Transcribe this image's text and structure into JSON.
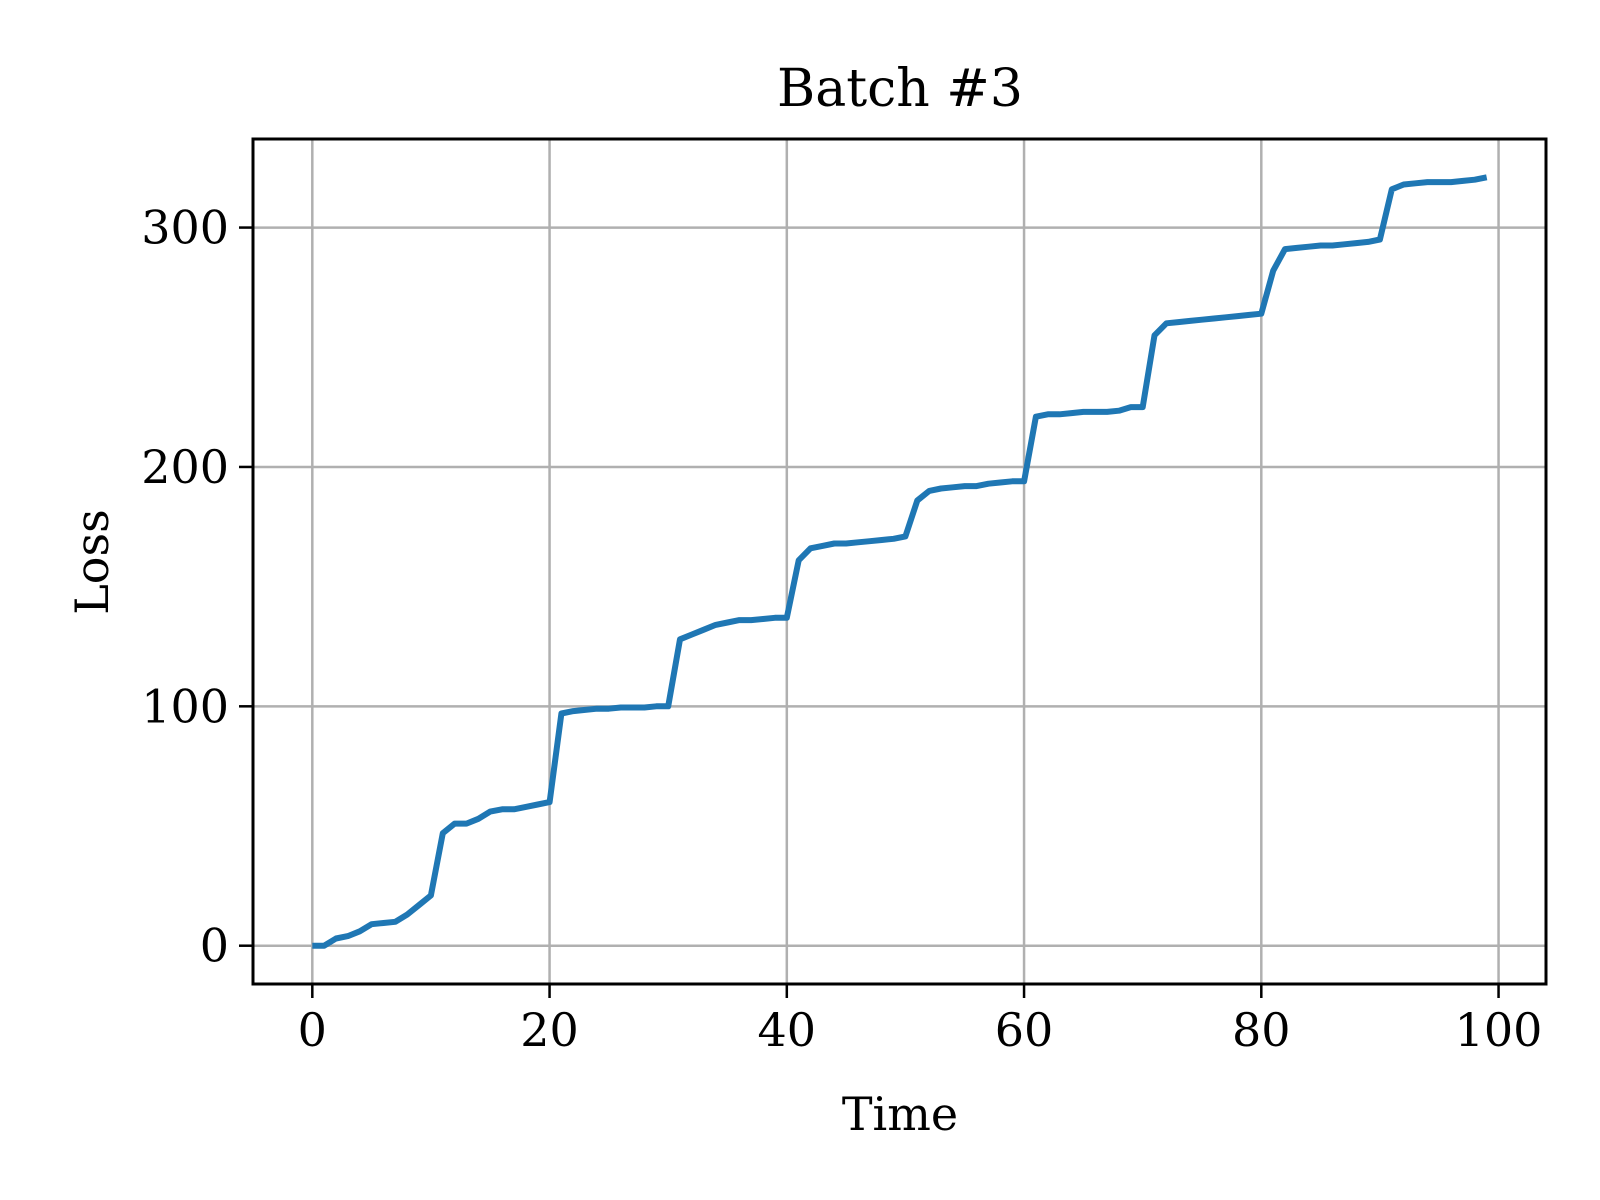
{
  "chart_data": {
    "type": "line",
    "title": "Batch #3",
    "xlabel": "Time",
    "ylabel": "Loss",
    "xlim": [
      -5,
      104
    ],
    "ylim": [
      -16,
      337
    ],
    "xticks": [
      0,
      20,
      40,
      60,
      80,
      100
    ],
    "xtick_labels": [
      "0",
      "20",
      "40",
      "60",
      "80",
      "100"
    ],
    "yticks": [
      0,
      100,
      200,
      300
    ],
    "ytick_labels": [
      "0",
      "100",
      "200",
      "300"
    ],
    "grid": true,
    "legend": "none",
    "series": [
      {
        "color": "#1f77b4",
        "x": [
          0,
          1,
          2,
          3,
          4,
          5,
          6,
          7,
          8,
          9,
          10,
          11,
          12,
          13,
          14,
          15,
          16,
          17,
          18,
          19,
          20,
          21,
          22,
          23,
          24,
          25,
          26,
          27,
          28,
          29,
          30,
          31,
          32,
          33,
          34,
          35,
          36,
          37,
          38,
          39,
          40,
          41,
          42,
          43,
          44,
          45,
          46,
          47,
          48,
          49,
          50,
          51,
          52,
          53,
          54,
          55,
          56,
          57,
          58,
          59,
          60,
          61,
          62,
          63,
          64,
          65,
          66,
          67,
          68,
          69,
          70,
          71,
          72,
          73,
          74,
          75,
          76,
          77,
          78,
          79,
          80,
          81,
          82,
          83,
          84,
          85,
          86,
          87,
          88,
          89,
          90,
          91,
          92,
          93,
          94,
          95,
          96,
          97,
          98,
          99
        ],
        "y": [
          0,
          0,
          3,
          4,
          6,
          9,
          9.5,
          10,
          13,
          17,
          21,
          47,
          51,
          51,
          53,
          56,
          57,
          57,
          58,
          59,
          60,
          97,
          98,
          98.5,
          99,
          99,
          99.5,
          99.5,
          99.5,
          100,
          100,
          128,
          130,
          132,
          134,
          135,
          136,
          136,
          136.5,
          137,
          137,
          161,
          166,
          167,
          168,
          168,
          168.5,
          169,
          169.5,
          170,
          171,
          186,
          190,
          191,
          191.5,
          192,
          192,
          193,
          193.5,
          194,
          194,
          221,
          222,
          222,
          222.5,
          223,
          223,
          223,
          223.5,
          225,
          225,
          255,
          260,
          260.5,
          261,
          261.5,
          262,
          262.5,
          263,
          263.5,
          264,
          282,
          291,
          291.5,
          292,
          292.5,
          292.5,
          293,
          293.5,
          294,
          295,
          316,
          318,
          318.5,
          319,
          319,
          319,
          319.5,
          320,
          321
        ]
      }
    ]
  }
}
